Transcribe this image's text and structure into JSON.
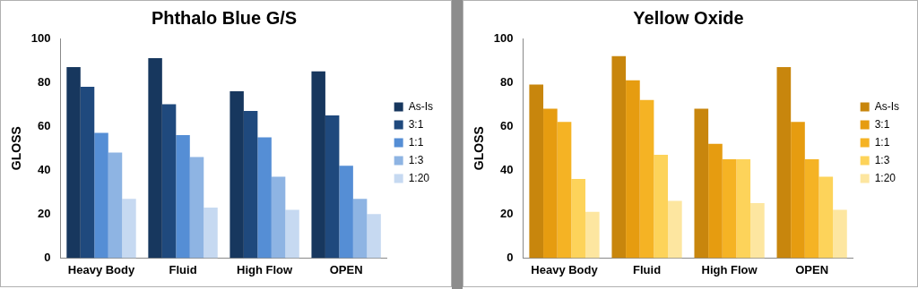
{
  "chart_data": [
    {
      "type": "bar",
      "title": "Phthalo Blue G/S",
      "y_label": "GLOSS",
      "categories": [
        "Heavy Body",
        "Fluid",
        "High Flow",
        "OPEN"
      ],
      "series": [
        {
          "name": "As-Is",
          "color": "#17375e",
          "values": [
            87,
            91,
            76,
            85
          ]
        },
        {
          "name": "3:1",
          "color": "#1f497d",
          "values": [
            78,
            70,
            67,
            65
          ]
        },
        {
          "name": "1:1",
          "color": "#558ed5",
          "values": [
            57,
            56,
            55,
            42
          ]
        },
        {
          "name": "1:3",
          "color": "#8eb4e3",
          "values": [
            48,
            46,
            37,
            27
          ]
        },
        {
          "name": "1:20",
          "color": "#c6d9f1",
          "values": [
            27,
            23,
            22,
            20
          ]
        }
      ],
      "ylim": [
        0,
        100
      ],
      "yticks": [
        0,
        20,
        40,
        60,
        80,
        100
      ],
      "grid": false,
      "legend": "right"
    },
    {
      "type": "bar",
      "title": "Yellow Oxide",
      "y_label": "GLOSS",
      "categories": [
        "Heavy Body",
        "Fluid",
        "High Flow",
        "OPEN"
      ],
      "series": [
        {
          "name": "As-Is",
          "color": "#c8860d",
          "values": [
            79,
            92,
            68,
            87
          ]
        },
        {
          "name": "3:1",
          "color": "#e69c10",
          "values": [
            68,
            81,
            52,
            62
          ]
        },
        {
          "name": "1:1",
          "color": "#f5b324",
          "values": [
            62,
            72,
            45,
            45
          ]
        },
        {
          "name": "1:3",
          "color": "#fdd35a",
          "values": [
            36,
            47,
            45,
            37
          ]
        },
        {
          "name": "1:20",
          "color": "#fde6a0",
          "values": [
            21,
            26,
            25,
            22
          ]
        }
      ],
      "ylim": [
        0,
        100
      ],
      "yticks": [
        0,
        20,
        40,
        60,
        80,
        100
      ],
      "grid": false,
      "legend": "right"
    }
  ]
}
